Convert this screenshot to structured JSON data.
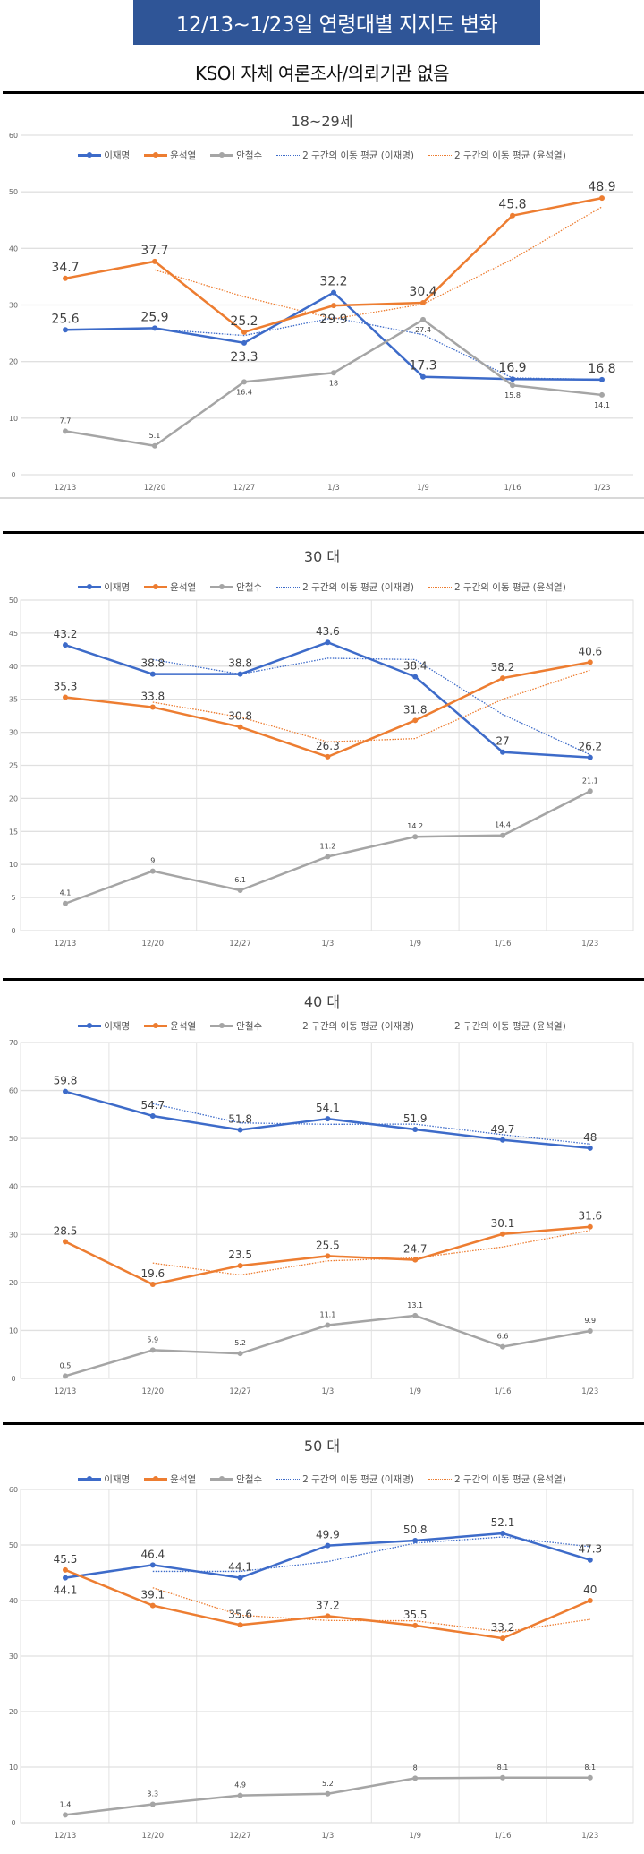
{
  "header": {
    "title": "12/13~1/23일 연령대별 지지도 변화",
    "subtitle": "KSOI 자체 여론조사/의뢰기관 없음"
  },
  "colors": {
    "banner": "#2f5597",
    "이재명": "#3d6bc9",
    "윤석열": "#ed7d31",
    "안철수": "#a5a5a5"
  },
  "legend": [
    "이재명",
    "윤석열",
    "안철수",
    "2 구간의 이동 평균 (이재명)",
    "2 구간의 이동 평균 (윤석열)"
  ],
  "chart_data": [
    {
      "type": "line",
      "title": "18~29세",
      "categories": [
        "12/13",
        "12/20",
        "12/27",
        "1/3",
        "1/9",
        "1/16",
        "1/23"
      ],
      "ylim": [
        0,
        60
      ],
      "yticks": [
        0,
        10,
        20,
        30,
        40,
        50,
        60
      ],
      "grid": "horizontal",
      "legend_position": "top",
      "series": [
        {
          "name": "이재명",
          "values": [
            25.6,
            25.9,
            23.3,
            32.2,
            17.3,
            16.9,
            16.8
          ]
        },
        {
          "name": "윤석열",
          "values": [
            34.7,
            37.7,
            25.2,
            29.9,
            30.4,
            45.8,
            48.9
          ]
        },
        {
          "name": "안철수",
          "values": [
            7.7,
            5.1,
            16.4,
            18,
            27.4,
            15.8,
            14.1
          ]
        }
      ],
      "trendlines": [
        "2-period moving average (이재명)",
        "2-period moving average (윤석열)"
      ]
    },
    {
      "type": "line",
      "title": "30 대",
      "categories": [
        "12/13",
        "12/20",
        "12/27",
        "1/3",
        "1/9",
        "1/16",
        "1/23"
      ],
      "ylim": [
        0,
        50
      ],
      "yticks": [
        0,
        5,
        10,
        15,
        20,
        25,
        30,
        35,
        40,
        45,
        50
      ],
      "grid": "both",
      "legend_position": "top",
      "series": [
        {
          "name": "이재명",
          "values": [
            43.2,
            38.8,
            38.8,
            43.6,
            38.4,
            27,
            26.2
          ]
        },
        {
          "name": "윤석열",
          "values": [
            35.3,
            33.8,
            30.8,
            26.3,
            31.8,
            38.2,
            40.6
          ]
        },
        {
          "name": "안철수",
          "values": [
            4.1,
            9,
            6.1,
            11.2,
            14.2,
            14.4,
            21.1
          ]
        }
      ],
      "trendlines": [
        "2-period moving average (이재명)",
        "2-period moving average (윤석열)"
      ]
    },
    {
      "type": "line",
      "title": "40 대",
      "categories": [
        "12/13",
        "12/20",
        "12/27",
        "1/3",
        "1/9",
        "1/16",
        "1/23"
      ],
      "ylim": [
        0,
        70
      ],
      "yticks": [
        0,
        10,
        20,
        30,
        40,
        50,
        60,
        70
      ],
      "grid": "both",
      "legend_position": "top",
      "series": [
        {
          "name": "이재명",
          "values": [
            59.8,
            54.7,
            51.8,
            54.1,
            51.9,
            49.7,
            48
          ]
        },
        {
          "name": "윤석열",
          "values": [
            28.5,
            19.6,
            23.5,
            25.5,
            24.7,
            30.1,
            31.6
          ]
        },
        {
          "name": "안철수",
          "values": [
            0.5,
            5.9,
            5.2,
            11.1,
            13.1,
            6.6,
            9.9
          ]
        }
      ],
      "trendlines": [
        "2-period moving average (이재명)",
        "2-period moving average (윤석열)"
      ]
    },
    {
      "type": "line",
      "title": "50 대",
      "categories": [
        "12/13",
        "12/20",
        "12/27",
        "1/3",
        "1/9",
        "1/16",
        "1/23"
      ],
      "ylim": [
        0,
        60
      ],
      "yticks": [
        0,
        10,
        20,
        30,
        40,
        50,
        60
      ],
      "grid": "both",
      "legend_position": "top",
      "series": [
        {
          "name": "이재명",
          "values": [
            44.1,
            46.4,
            44.1,
            49.9,
            50.8,
            52.1,
            47.3
          ]
        },
        {
          "name": "윤석열",
          "values": [
            45.5,
            39.1,
            35.6,
            37.2,
            35.5,
            33.2,
            40
          ]
        },
        {
          "name": "안철수",
          "values": [
            1.4,
            3.3,
            4.9,
            5.2,
            8,
            8.1,
            8.1
          ]
        }
      ],
      "trendlines": [
        "2-period moving average (이재명)",
        "2-period moving average (윤석열)"
      ]
    }
  ]
}
